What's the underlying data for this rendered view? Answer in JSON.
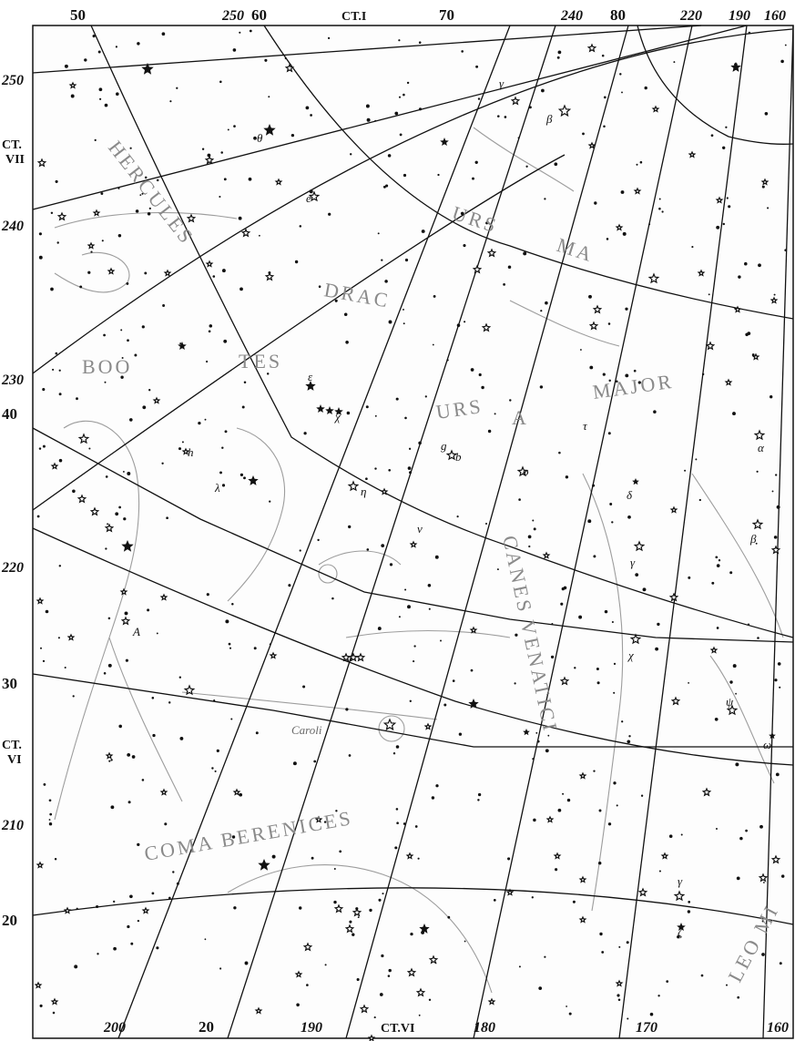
{
  "map": {
    "top_labels": [
      "50",
      "250",
      "60",
      "CT.I",
      "70",
      "240",
      "80",
      "220",
      "190",
      "160"
    ],
    "left_labels": [
      "250",
      "CT.",
      "VII",
      "240",
      "230",
      "40",
      "220",
      "30",
      "CT.",
      "VI",
      "210",
      "20"
    ],
    "bottom_labels": [
      "200",
      "20",
      "190",
      "CT.VI",
      "180",
      "170",
      "160"
    ],
    "constellations": [
      {
        "name": "HERCULES"
      },
      {
        "name": "BOO"
      },
      {
        "name": "TES"
      },
      {
        "name": "DRAC"
      },
      {
        "name": "URS"
      },
      {
        "name": "MA"
      },
      {
        "name": "URS"
      },
      {
        "name": "A"
      },
      {
        "name": "MAJOR"
      },
      {
        "name": "CANES VENATICI"
      },
      {
        "name": "COMA BERENICES"
      },
      {
        "name": "LEO MI"
      }
    ],
    "star_labels": [
      "Caroli",
      "θ",
      "β",
      "γ",
      "ε",
      "χ",
      "η",
      "ν",
      "λ",
      "α",
      "β",
      "γ",
      "χ",
      "ψ",
      "ω",
      "γ",
      "ζ",
      "τ",
      "δ",
      "ο",
      "g",
      "b",
      "e",
      "A",
      "h"
    ]
  }
}
